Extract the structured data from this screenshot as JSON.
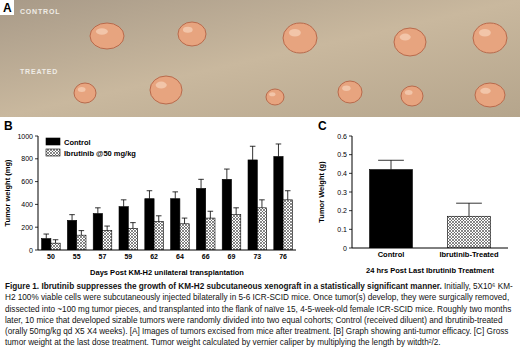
{
  "figure": {
    "panel_a": {
      "label": "A",
      "rows": [
        {
          "label": "CONTROL"
        },
        {
          "label": "TREATED"
        }
      ]
    },
    "caption": {
      "title": "Figure 1. Ibrutinib suppresses the growth of KM-H2 subcutaneous xenograft in a statistically significant manner.",
      "text": "Initially, 5X10⁶ KM-H2 100% viable cells were subcutaneously injected bilaterally in 5-6 ICR-SCID mice. Once tumor(s) develop, they were surgically removed, dissected into ~100 mg tumor pieces, and transplanted into the flank of naïve 15, 4-5-week-old female ICR-SCID mice. Roughly two months later, 10 mice that developed sizable tumors were randomly divided into two equal cohorts; Control (received diluent) and Ibrutinib-treated (orally 50mg/kg qd X5 X4 weeks). [A] Images of tumors excised from mice after treatment. [B] Graph showing anti-tumor efficacy. [C] Gross tumor weight at the last dose treatment. Tumor weight calculated by vernier caliper by multiplying the length by witdth²/2."
    }
  },
  "chart_data": [
    {
      "type": "bar",
      "title": "B",
      "x_label": "Days Post KM-H2 unilateral transplantation",
      "y_label": "Tumor weight (mg)",
      "categories": [
        "50",
        "55",
        "57",
        "59",
        "62",
        "64",
        "66",
        "69",
        "73",
        "76"
      ],
      "series": [
        {
          "name": "Control",
          "color": "#000000",
          "values": [
            100,
            260,
            320,
            380,
            450,
            450,
            540,
            620,
            790,
            820
          ],
          "errors": [
            40,
            50,
            50,
            60,
            70,
            60,
            80,
            90,
            120,
            110
          ]
        },
        {
          "name": "Ibrutinib @50 mg/kg",
          "color": "#555555",
          "values": [
            60,
            130,
            170,
            190,
            250,
            230,
            280,
            310,
            370,
            440
          ],
          "errors": [
            30,
            40,
            40,
            50,
            50,
            50,
            60,
            60,
            70,
            80
          ]
        }
      ],
      "ylim": [
        0,
        1000
      ],
      "yticks": [
        0,
        200,
        400,
        600,
        800,
        1000
      ],
      "legend": "upper left"
    },
    {
      "type": "bar",
      "title": "C",
      "x_label": "24 hrs Post Last Ibrutinib Treatment",
      "y_label": "Tumor Weight (g)",
      "categories": [
        "Control",
        "Ibrutinib-Treated"
      ],
      "values": [
        0.42,
        0.17
      ],
      "errors": [
        0.05,
        0.07
      ],
      "colors": [
        "#000000",
        "#555555"
      ],
      "ylim": [
        0,
        0.6
      ],
      "yticks": [
        0,
        0.1,
        0.2,
        0.3,
        0.4,
        0.5,
        0.6
      ]
    }
  ]
}
